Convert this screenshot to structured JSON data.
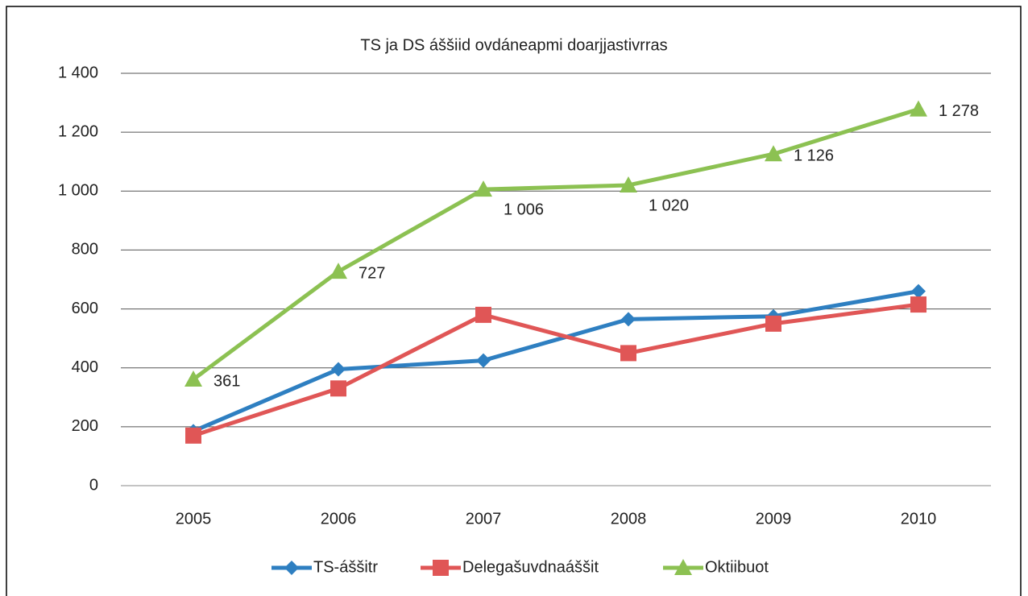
{
  "chart_data": {
    "type": "line",
    "title": "TS ja DS áššiid ovdáneapmi doarjjastivrras",
    "categories": [
      "2005",
      "2006",
      "2007",
      "2008",
      "2009",
      "2010"
    ],
    "series": [
      {
        "name": "TS-áššitr",
        "color": "#2e7fc1",
        "marker": "diamond",
        "values": [
          185,
          395,
          425,
          565,
          575,
          660
        ]
      },
      {
        "name": "Delegašuvdnaáššit",
        "color": "#e05656",
        "marker": "square",
        "values": [
          170,
          330,
          580,
          450,
          550,
          615
        ]
      },
      {
        "name": "Oktiibuot",
        "color": "#8cc152",
        "marker": "triangle",
        "values": [
          361,
          727,
          1006,
          1020,
          1126,
          1278
        ],
        "value_labels": [
          "361",
          "727",
          "1 006",
          "1 020",
          "1 126",
          "1 278"
        ]
      }
    ],
    "ylim": [
      0,
      1400
    ],
    "yticks": [
      0,
      200,
      400,
      600,
      800,
      {
        "value": 1000,
        "label": "1 000"
      },
      {
        "value": 1200,
        "label": "1 200"
      },
      {
        "value": 1400,
        "label": "1 400"
      }
    ],
    "grid": true,
    "legend": "bottom"
  }
}
